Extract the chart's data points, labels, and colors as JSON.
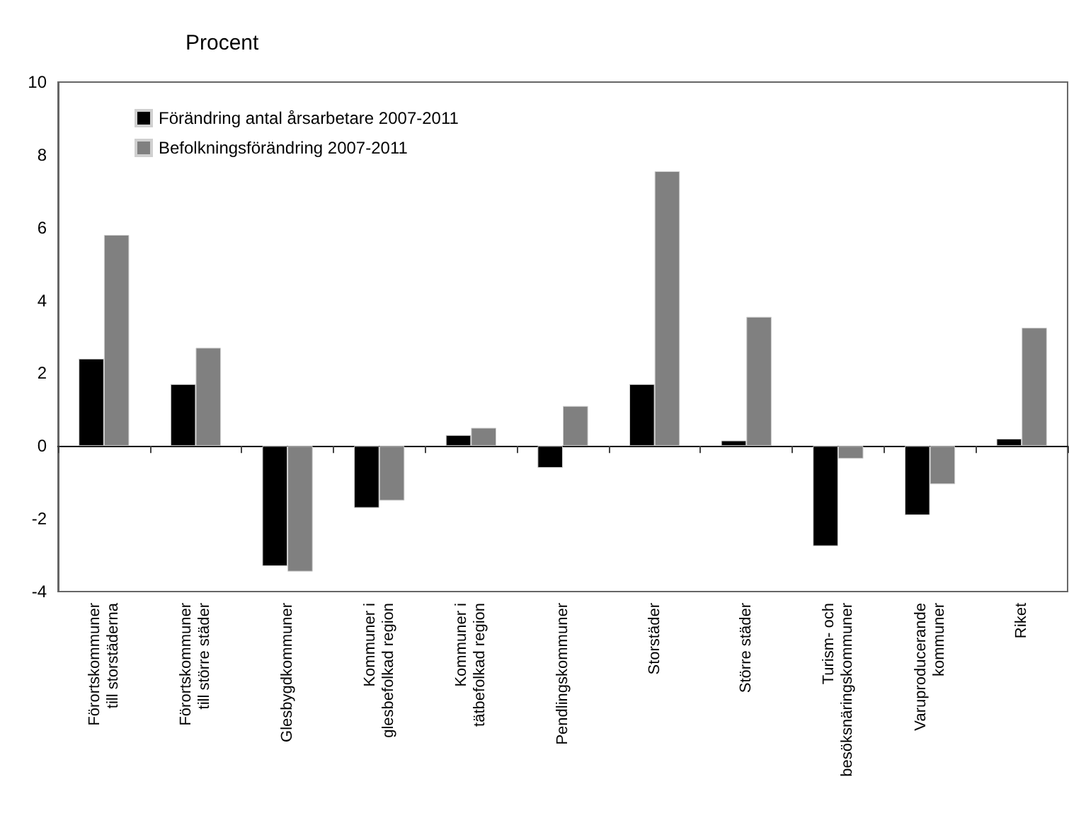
{
  "chart_data": {
    "type": "bar",
    "ylabel": "Procent",
    "categories": [
      "Förortskommuner\ntill storstäderna",
      "Förortskommuner\ntill större städer",
      "Glesbygdkommuner",
      "Kommuner i\nglesbefolkad region",
      "Kommuner i\ntätbefolkad region",
      "Pendlingskommuner",
      "Storstäder",
      "Större städer",
      "Turism- och\nbesöksnäringskommuner",
      "Varuproducerande\nkommuner",
      "Riket"
    ],
    "series": [
      {
        "name": "Förändring antal årsarbetare 2007-2011",
        "color": "#000000",
        "values": [
          2.4,
          1.7,
          -3.3,
          -1.7,
          0.3,
          -0.6,
          1.7,
          0.15,
          -2.75,
          -1.9,
          0.2
        ]
      },
      {
        "name": "Befolkningsförändring 2007-2011",
        "color": "#808080",
        "values": [
          5.8,
          2.7,
          -3.45,
          -1.5,
          0.5,
          1.1,
          7.55,
          3.55,
          -0.35,
          -1.05,
          3.25
        ]
      }
    ],
    "ylim": [
      -4,
      10
    ],
    "yticks": [
      -4,
      -2,
      0,
      2,
      4,
      6,
      8,
      10
    ],
    "legend": "top left"
  }
}
